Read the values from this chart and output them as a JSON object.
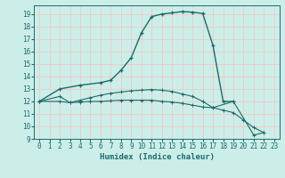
{
  "xlabel": "Humidex (Indice chaleur)",
  "bg_color": "#cceee8",
  "grid_color": "#f0c8c8",
  "line_color": "#1a6b6b",
  "xlim": [
    -0.5,
    23.5
  ],
  "ylim": [
    9,
    19.7
  ],
  "yticks": [
    9,
    10,
    11,
    12,
    13,
    14,
    15,
    16,
    17,
    18,
    19
  ],
  "xticks": [
    0,
    1,
    2,
    3,
    4,
    5,
    6,
    7,
    8,
    9,
    10,
    11,
    12,
    13,
    14,
    15,
    16,
    17,
    18,
    19,
    20,
    21,
    22,
    23
  ],
  "c1x": [
    0,
    2,
    4,
    6,
    7,
    8,
    9,
    10,
    11,
    12,
    13,
    14,
    15,
    16,
    17,
    18,
    19
  ],
  "c1y": [
    12.0,
    13.0,
    13.3,
    13.5,
    13.7,
    14.5,
    15.5,
    17.5,
    18.8,
    19.0,
    19.1,
    19.2,
    19.15,
    19.05,
    16.5,
    12.0,
    12.0
  ],
  "c2x": [
    0,
    2,
    3,
    4,
    5,
    6,
    7,
    8,
    9,
    10,
    11,
    12,
    13,
    14,
    15,
    16,
    17,
    19,
    21,
    22
  ],
  "c2y": [
    12.0,
    12.4,
    11.9,
    12.1,
    12.3,
    12.5,
    12.65,
    12.75,
    12.85,
    12.9,
    12.95,
    12.9,
    12.8,
    12.6,
    12.4,
    12.0,
    11.5,
    12.0,
    9.3,
    9.5
  ],
  "c3x": [
    0,
    2,
    3,
    4,
    5,
    6,
    7,
    8,
    9,
    10,
    11,
    12,
    13,
    14,
    15,
    16,
    17,
    18,
    19,
    20,
    21,
    22
  ],
  "c3y": [
    12.0,
    12.0,
    11.9,
    11.95,
    12.0,
    12.0,
    12.05,
    12.1,
    12.1,
    12.1,
    12.1,
    12.0,
    11.95,
    11.85,
    11.7,
    11.55,
    11.5,
    11.3,
    11.1,
    10.5,
    9.9,
    9.5
  ]
}
